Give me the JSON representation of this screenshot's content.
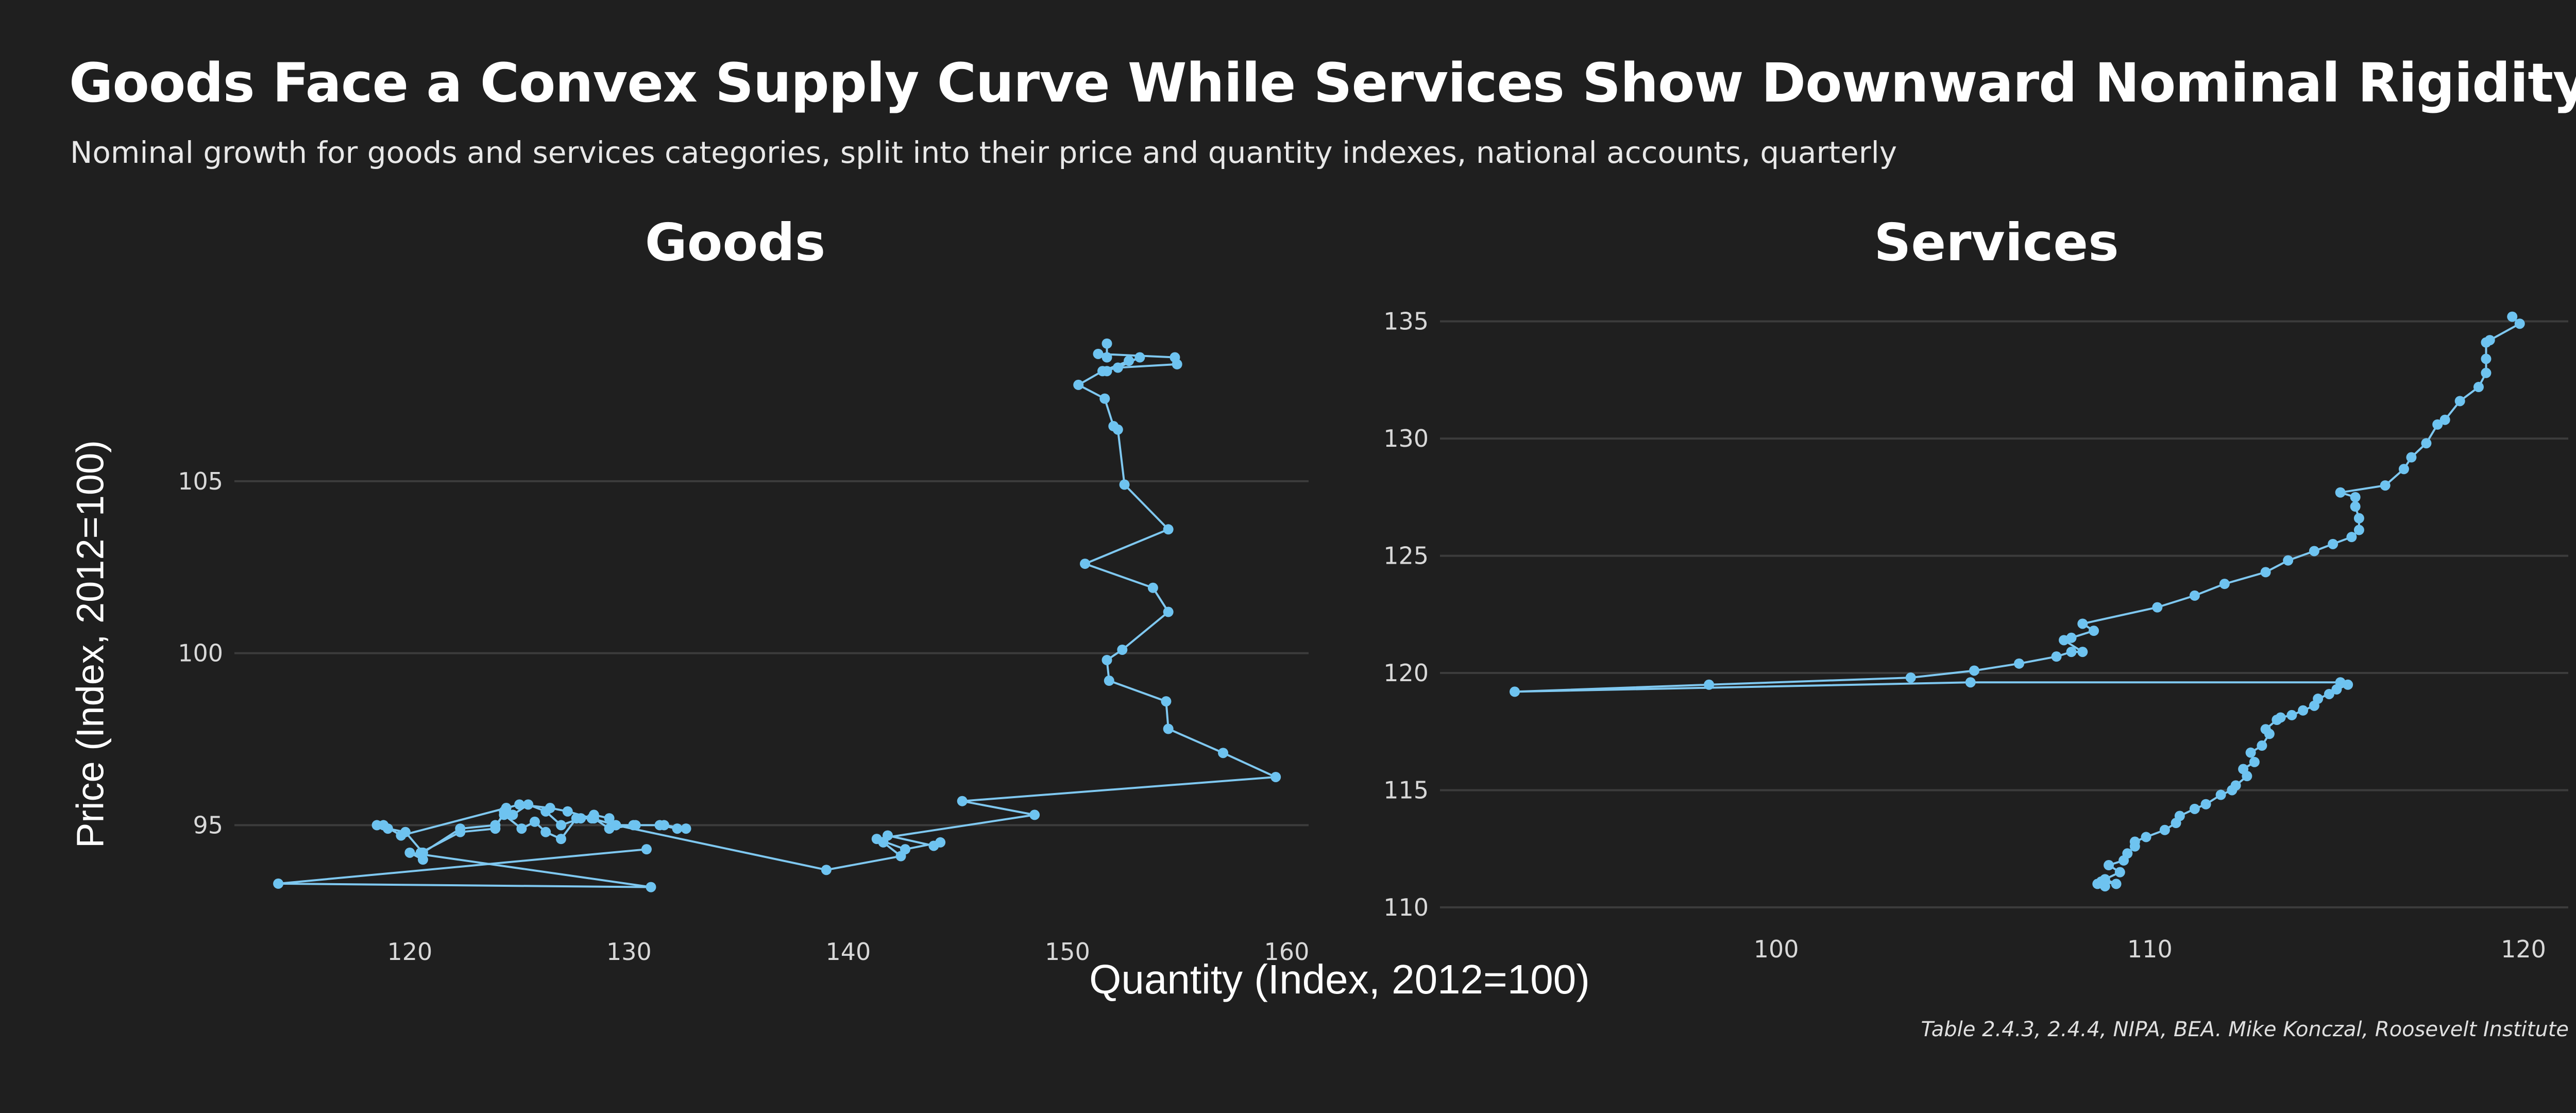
{
  "header": {
    "title": "Goods Face a Convex Supply Curve While Services Show Downward Nominal Rigidity",
    "subtitle": "Nominal growth for goods and services categories, split into their price and quantity indexes, national accounts, quarterly",
    "source": "Table 2.4.3, 2.4.4, NIPA, BEA. Mike Konczal, Roosevelt Institute"
  },
  "colors": {
    "background": "#1f1f1f",
    "series": "#6ec3f0",
    "grid": "#3c3c3c"
  },
  "chart_data": [
    {
      "type": "line",
      "title": "Goods",
      "xlabel": "Quantity (Index, 2012=100)",
      "ylabel": "Price (Index, 2012=100)",
      "xlim": [
        112,
        161
      ],
      "ylim": [
        92.4,
        110.6
      ],
      "xticks": [
        120,
        130,
        140,
        150,
        160
      ],
      "yticks": [
        95,
        100,
        105
      ],
      "grid": true,
      "markers": true,
      "series": [
        {
          "x": [
            130.8,
            114.0,
            131.0,
            120.0,
            120.6,
            120.5,
            122.3,
            123.9,
            124.3,
            124.4,
            124.7,
            125.4,
            126.2,
            126.9,
            127.8,
            128.4,
            129.1,
            129.4,
            130.3,
            131.4,
            132.2,
            132.6,
            131.6,
            130.2,
            129.1,
            128.4,
            127.6,
            126.9,
            126.2,
            125.7,
            125.1,
            124.3,
            123.9,
            122.3,
            120.6,
            119.8,
            119.0,
            118.5,
            118.8,
            119.6,
            125.0,
            126.4,
            127.2,
            128.3,
            129.4,
            139.0,
            142.4,
            141.6,
            141.8,
            143.9,
            144.2,
            142.6,
            141.3,
            148.5,
            145.2,
            159.5,
            157.1,
            154.6,
            154.5,
            151.9,
            151.8,
            152.5,
            154.6,
            153.9,
            150.8,
            154.6,
            152.6,
            152.3,
            152.1,
            151.7,
            150.5,
            151.6,
            152.8,
            151.8,
            153.3,
            152.3,
            155.0,
            154.9,
            151.4,
            151.8,
            151.8
          ],
          "y": [
            94.3,
            93.3,
            93.2,
            94.2,
            94.0,
            94.2,
            94.8,
            94.9,
            95.4,
            95.5,
            95.3,
            95.6,
            95.4,
            95.0,
            95.2,
            95.3,
            95.2,
            95.0,
            95.0,
            95.0,
            94.9,
            94.9,
            95.0,
            95.0,
            94.9,
            95.2,
            95.2,
            94.6,
            94.8,
            95.1,
            94.9,
            95.3,
            95.0,
            94.9,
            94.2,
            94.8,
            94.9,
            95.0,
            95.0,
            94.7,
            95.6,
            95.5,
            95.4,
            95.2,
            95.0,
            93.7,
            94.1,
            94.5,
            94.7,
            94.4,
            94.5,
            94.3,
            94.6,
            95.3,
            95.7,
            96.4,
            97.1,
            97.8,
            98.6,
            99.2,
            99.8,
            100.1,
            101.2,
            101.9,
            102.6,
            103.6,
            104.9,
            106.5,
            106.6,
            107.4,
            107.8,
            108.2,
            108.5,
            108.2,
            108.6,
            108.3,
            108.4,
            108.6,
            108.7,
            108.6,
            109.0
          ]
        }
      ]
    },
    {
      "type": "line",
      "title": "Services",
      "xlabel": "Quantity (Index, 2012=100)",
      "ylabel": "",
      "xlim": [
        91,
        121.2
      ],
      "ylim": [
        109.8,
        136.4
      ],
      "xticks": [
        100,
        110,
        120
      ],
      "yticks": [
        110,
        115,
        120,
        125,
        130,
        135
      ],
      "grid": true,
      "markers": true,
      "series": [
        {
          "x": [
            108.8,
            108.6,
            108.7,
            109.1,
            108.8,
            109.2,
            108.9,
            109.3,
            109.4,
            109.6,
            109.6,
            109.9,
            110.4,
            110.7,
            110.8,
            111.2,
            111.5,
            111.9,
            112.2,
            112.3,
            112.6,
            112.5,
            112.8,
            112.7,
            113.0,
            113.2,
            113.1,
            113.4,
            113.5,
            113.8,
            114.1,
            114.4,
            114.5,
            114.8,
            115.0,
            115.3,
            115.1,
            105.2,
            93.0,
            98.2,
            103.6,
            105.3,
            106.5,
            107.5,
            107.9,
            108.2,
            107.7,
            107.9,
            108.5,
            108.2,
            110.2,
            111.2,
            112.0,
            113.1,
            113.7,
            114.4,
            114.9,
            115.4,
            115.6,
            115.6,
            115.5,
            115.5,
            115.1,
            116.3,
            116.8,
            117.0,
            117.4,
            117.7,
            117.9,
            118.3,
            118.8,
            119.0,
            119.0,
            119.0,
            119.1,
            119.9,
            119.7
          ],
          "y": [
            110.9,
            111.0,
            111.1,
            111.0,
            111.2,
            111.5,
            111.8,
            112.0,
            112.3,
            112.6,
            112.8,
            113.0,
            113.3,
            113.6,
            113.9,
            114.2,
            114.4,
            114.8,
            115.0,
            115.2,
            115.6,
            115.9,
            116.2,
            116.6,
            116.9,
            117.4,
            117.6,
            118.0,
            118.1,
            118.2,
            118.4,
            118.6,
            118.9,
            119.1,
            119.3,
            119.5,
            119.6,
            119.6,
            119.2,
            119.5,
            119.8,
            120.1,
            120.4,
            120.7,
            120.9,
            120.9,
            121.4,
            121.5,
            121.8,
            122.1,
            122.8,
            123.3,
            123.8,
            124.3,
            124.8,
            125.2,
            125.5,
            125.8,
            126.1,
            126.6,
            127.1,
            127.5,
            127.7,
            128.0,
            128.7,
            129.2,
            129.8,
            130.6,
            130.8,
            131.6,
            132.2,
            132.8,
            133.4,
            134.1,
            134.2,
            134.9,
            135.2
          ]
        }
      ]
    }
  ]
}
